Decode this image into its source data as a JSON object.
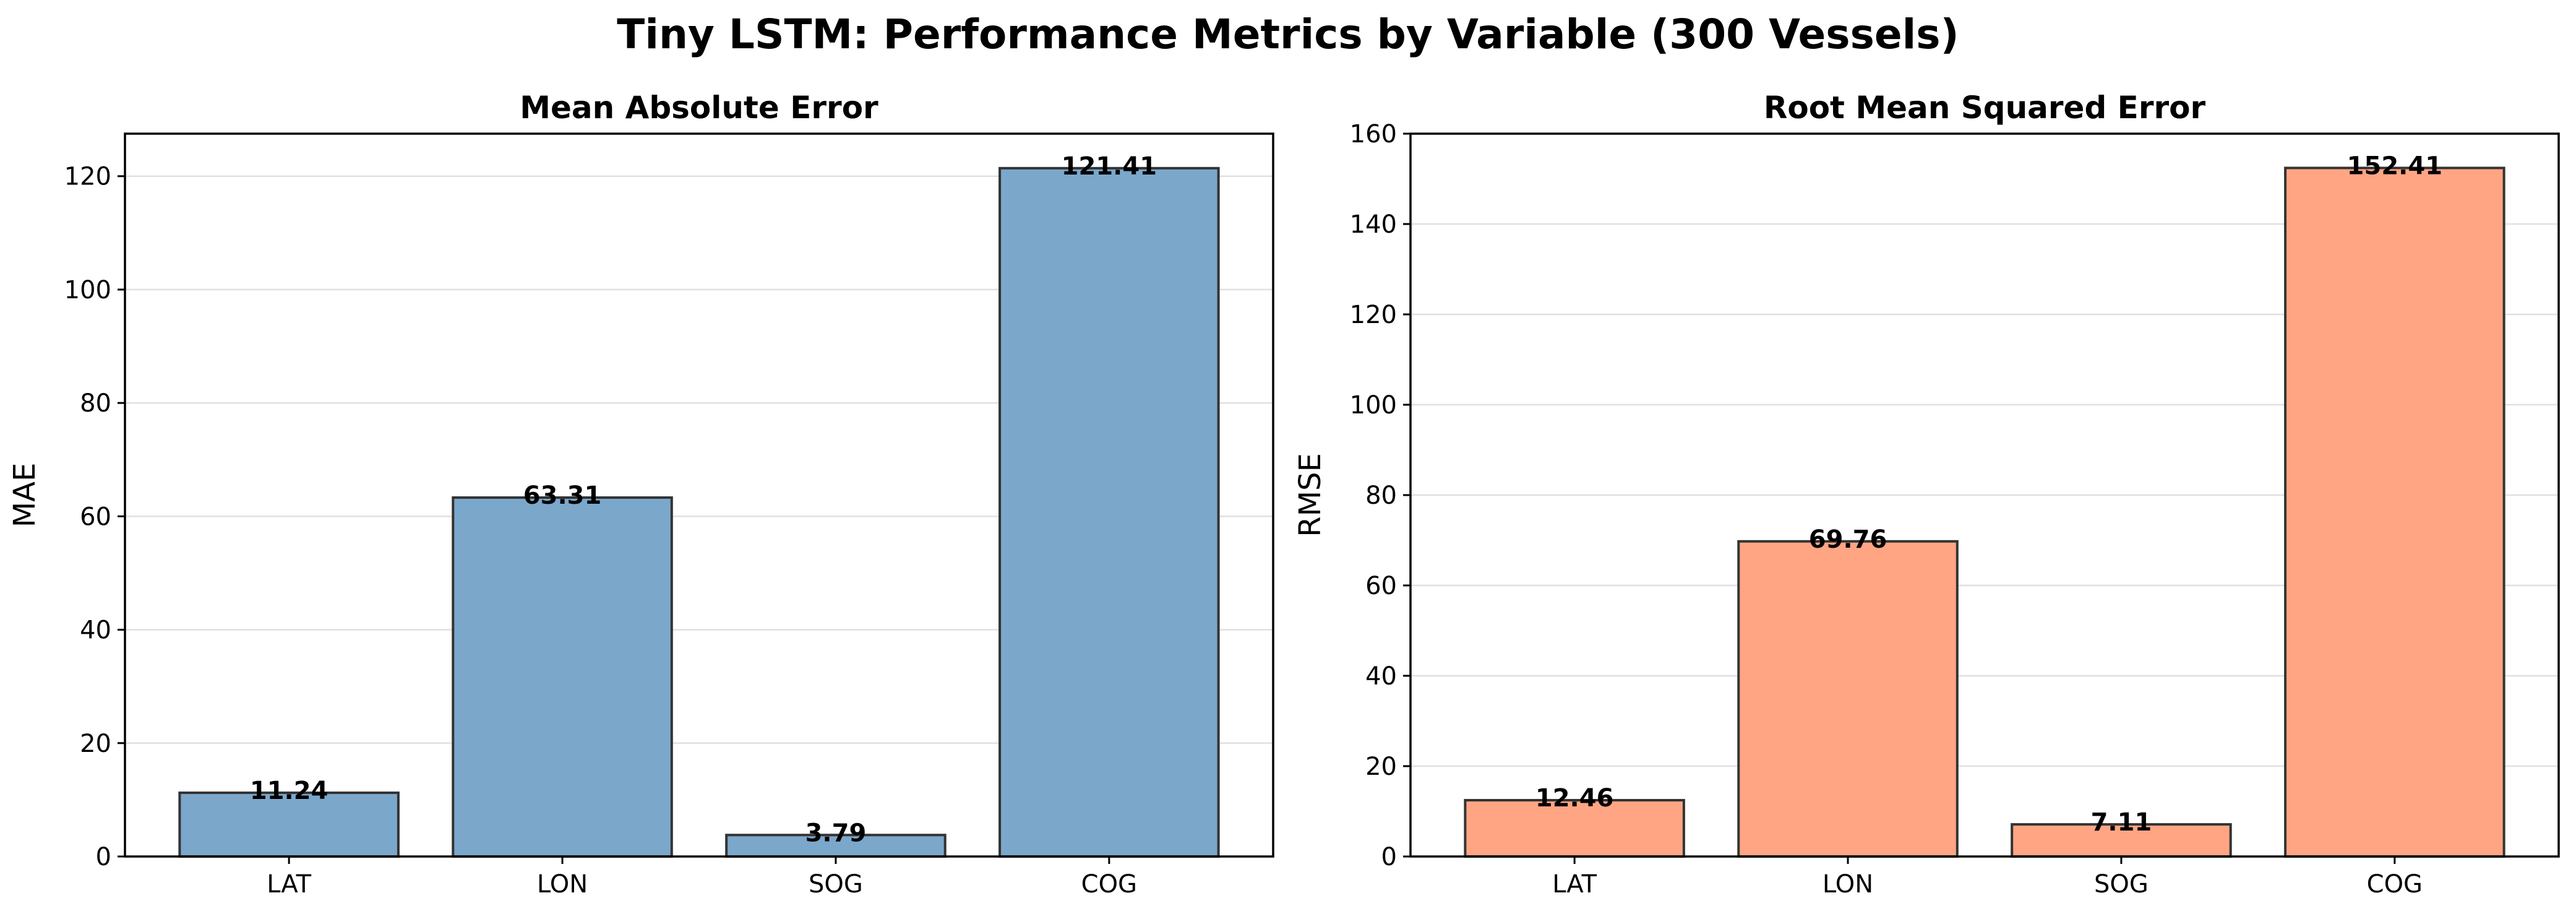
{
  "title": "Tiny LSTM: Performance Metrics by Variable (300 Vessels)",
  "chart_data": [
    {
      "type": "bar",
      "title": "Mean Absolute Error",
      "xlabel": "",
      "ylabel": "MAE",
      "categories": [
        "LAT",
        "LON",
        "SOG",
        "COG"
      ],
      "values": [
        11.24,
        63.31,
        3.79,
        121.41
      ],
      "value_labels": [
        "11.24",
        "63.31",
        "3.79",
        "121.41"
      ],
      "ylim": [
        0,
        127.5
      ],
      "yticks": [
        0,
        20,
        40,
        60,
        80,
        100,
        120
      ],
      "color": "#7ba7cb",
      "grid": "y"
    },
    {
      "type": "bar",
      "title": "Root Mean Squared Error",
      "xlabel": "",
      "ylabel": "RMSE",
      "categories": [
        "LAT",
        "LON",
        "SOG",
        "COG"
      ],
      "values": [
        12.46,
        69.76,
        7.11,
        152.41
      ],
      "value_labels": [
        "12.46",
        "69.76",
        "7.11",
        "152.41"
      ],
      "ylim": [
        0,
        160
      ],
      "yticks": [
        0,
        20,
        40,
        60,
        80,
        100,
        120,
        140,
        160
      ],
      "color": "#ffa584",
      "grid": "y"
    }
  ]
}
